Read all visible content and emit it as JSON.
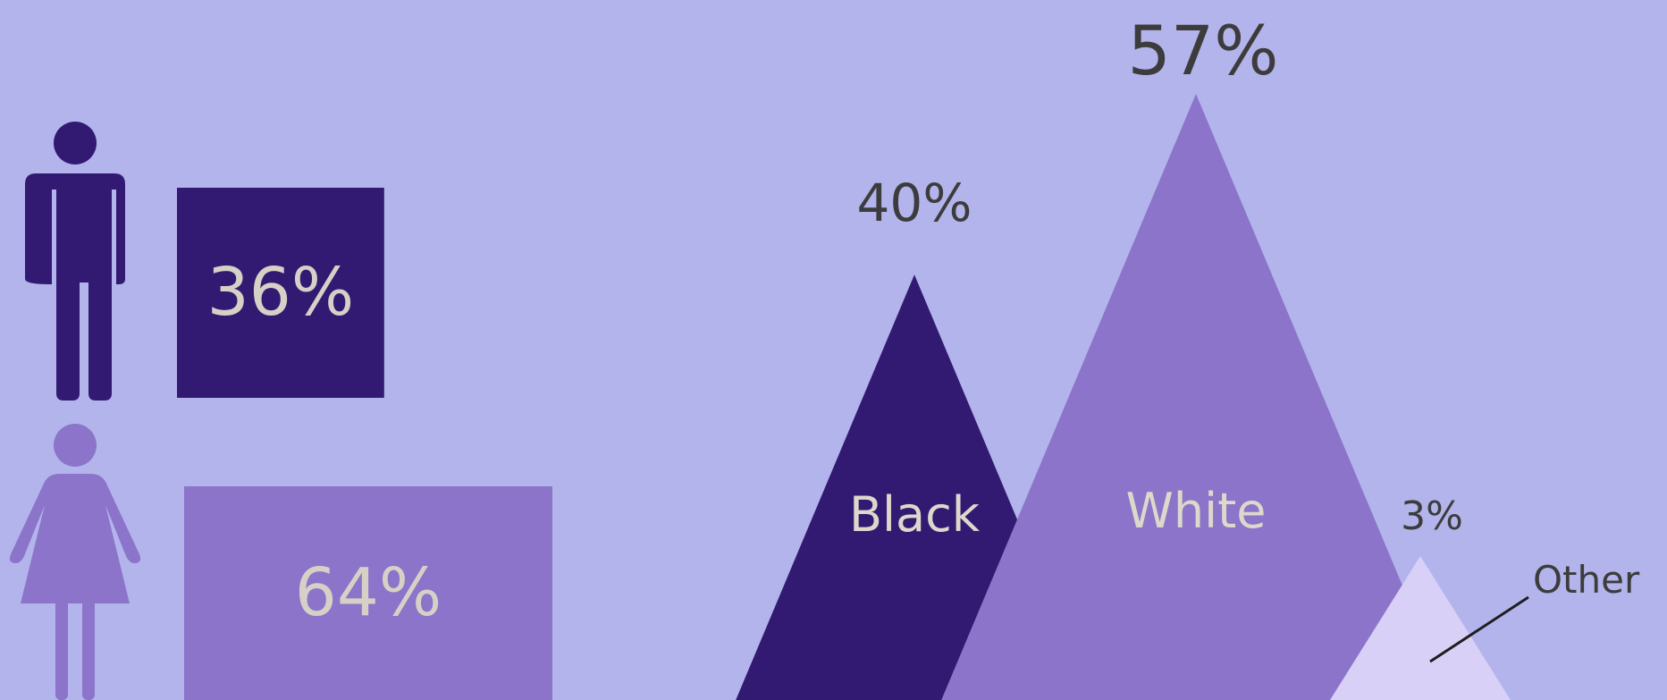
{
  "chart_data": [
    {
      "type": "bar",
      "categories": [
        "Male",
        "Female"
      ],
      "values": [
        36,
        64
      ],
      "value_labels": [
        "36%",
        "64%"
      ],
      "icons": [
        "male-person-icon",
        "female-person-icon"
      ],
      "colors": [
        "#321a72",
        "#8b74c9"
      ],
      "label_color": "#d6d1c6"
    },
    {
      "type": "area",
      "shape": "triangle",
      "categories": [
        "Black",
        "White",
        "Other"
      ],
      "values": [
        40,
        57,
        3
      ],
      "value_labels": [
        "40%",
        "57%",
        "3%"
      ],
      "colors": [
        "#321a72",
        "#8b74c9",
        "#d8d0f6"
      ],
      "label_color": "#ddd8cc",
      "value_label_color": "#3c3c3c"
    }
  ],
  "background": "#b3b4ec"
}
